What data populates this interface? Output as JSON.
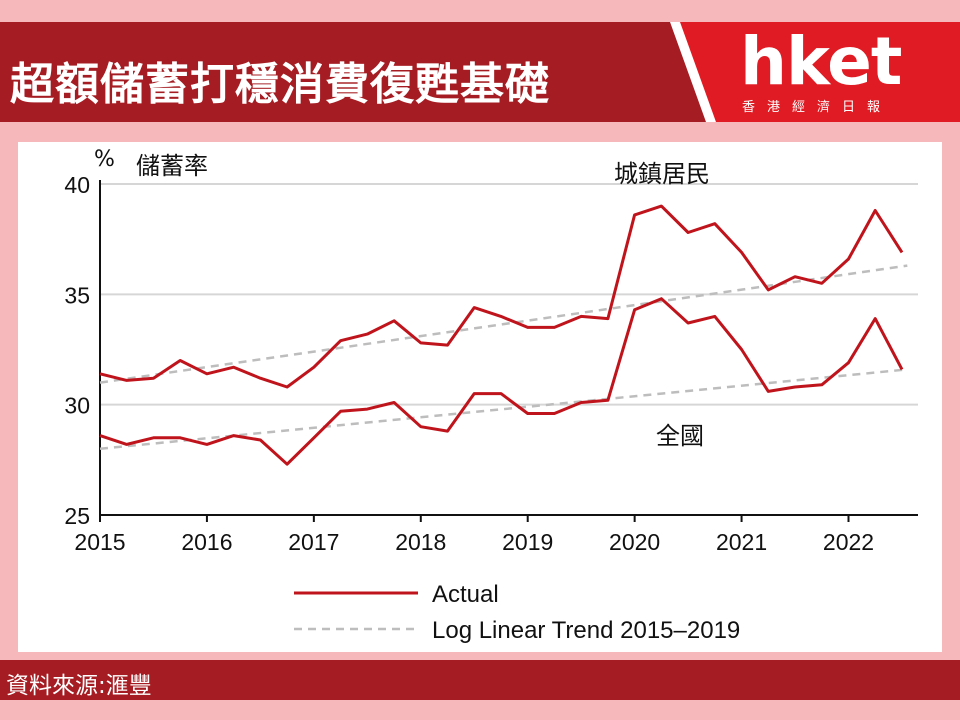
{
  "header": {
    "title": "超額儲蓄打穩消費復甦基礎",
    "logo": "hket",
    "logo_subtitle": "香港經濟日報"
  },
  "footer": {
    "source": "資料來源:滙豐"
  },
  "colors": {
    "brand_red": "#a51c22",
    "actual_line": "#c0141c",
    "trend_line": "#bdbdbd",
    "background_pink": "#f7b8bc"
  },
  "chart_data": {
    "type": "line",
    "ylabel": "%",
    "title": "儲蓄率",
    "ylim": [
      25,
      40
    ],
    "yticks": [
      25,
      30,
      35,
      40
    ],
    "xlim": [
      2015,
      2022.65
    ],
    "xticks": [
      "2015",
      "2016",
      "2017",
      "2018",
      "2019",
      "2020",
      "2021",
      "2022"
    ],
    "grid": "horizontal",
    "legend_placement": "bottom",
    "legend": [
      "Actual",
      "Log Linear Trend 2015–2019"
    ],
    "annotations": [
      "城鎮居民",
      "全國"
    ],
    "series": [
      {
        "name": "城鎮居民",
        "style": "actual",
        "x": [
          2015.0,
          2015.25,
          2015.5,
          2015.75,
          2016.0,
          2016.25,
          2016.5,
          2016.75,
          2017.0,
          2017.25,
          2017.5,
          2017.75,
          2018.0,
          2018.25,
          2018.5,
          2018.75,
          2019.0,
          2019.25,
          2019.5,
          2019.75,
          2020.0,
          2020.25,
          2020.5,
          2020.75,
          2021.0,
          2021.25,
          2021.5,
          2021.75,
          2022.0,
          2022.25,
          2022.5
        ],
        "values": [
          31.4,
          31.1,
          31.2,
          32.0,
          31.4,
          31.7,
          31.2,
          30.8,
          31.7,
          32.9,
          33.2,
          33.8,
          32.8,
          32.7,
          34.4,
          34.0,
          33.5,
          33.5,
          34.0,
          33.9,
          38.6,
          39.0,
          37.8,
          38.2,
          36.9,
          35.2,
          35.8,
          35.5,
          36.6,
          38.8,
          36.9
        ]
      },
      {
        "name": "全國",
        "style": "actual",
        "x": [
          2015.0,
          2015.25,
          2015.5,
          2015.75,
          2016.0,
          2016.25,
          2016.5,
          2016.75,
          2017.0,
          2017.25,
          2017.5,
          2017.75,
          2018.0,
          2018.25,
          2018.5,
          2018.75,
          2019.0,
          2019.25,
          2019.5,
          2019.75,
          2020.0,
          2020.25,
          2020.5,
          2020.75,
          2021.0,
          2021.25,
          2021.5,
          2021.75,
          2022.0,
          2022.25,
          2022.5
        ],
        "values": [
          28.6,
          28.2,
          28.5,
          28.5,
          28.2,
          28.6,
          28.4,
          27.3,
          28.5,
          29.7,
          29.8,
          30.1,
          29.0,
          28.8,
          30.5,
          30.5,
          29.6,
          29.6,
          30.1,
          30.2,
          34.3,
          34.8,
          33.7,
          34.0,
          32.5,
          30.6,
          30.8,
          30.9,
          31.9,
          33.9,
          31.6
        ]
      },
      {
        "name": "城鎮居民",
        "style": "trend",
        "x": [
          2015.0,
          2022.55
        ],
        "values": [
          31.0,
          36.3
        ]
      },
      {
        "name": "全國",
        "style": "trend",
        "x": [
          2015.0,
          2022.55
        ],
        "values": [
          28.0,
          31.6
        ]
      }
    ]
  }
}
